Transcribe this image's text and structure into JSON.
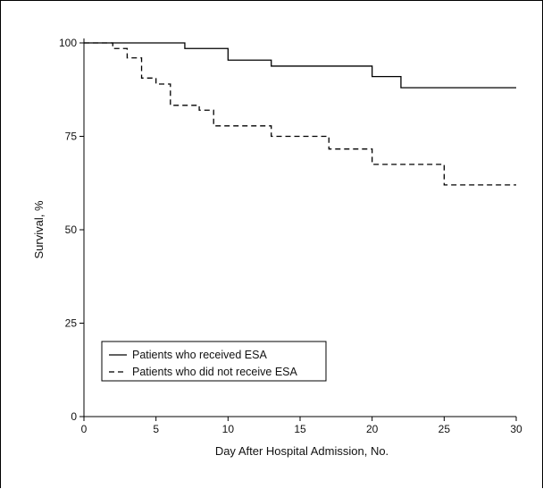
{
  "chart_data": {
    "type": "line",
    "step": true,
    "xlabel": "Day After Hospital Admission, No.",
    "ylabel": "Survival, %",
    "xlim": [
      0,
      30
    ],
    "ylim": [
      0,
      100
    ],
    "x_ticks": [
      0,
      5,
      10,
      15,
      20,
      25,
      30
    ],
    "y_ticks": [
      0,
      25,
      50,
      75,
      100
    ],
    "grid": false,
    "legend_position": "bottom-left",
    "series": [
      {
        "name": "Patients who received ESA",
        "line_style": "solid",
        "color": "#000000",
        "x": [
          0,
          7,
          10,
          13,
          20,
          22,
          30
        ],
        "y": [
          100,
          98.5,
          95.4,
          93.8,
          91.0,
          88.0,
          88.0
        ]
      },
      {
        "name": "Patients who did not receive ESA",
        "line_style": "dashed",
        "color": "#000000",
        "x": [
          0,
          2,
          3,
          4,
          5,
          6,
          8,
          9,
          13,
          17,
          20,
          25,
          30
        ],
        "y": [
          100,
          98.5,
          96.0,
          90.6,
          89.0,
          83.3,
          82.0,
          77.8,
          75.0,
          71.6,
          67.5,
          62.0,
          62.0
        ]
      }
    ]
  }
}
